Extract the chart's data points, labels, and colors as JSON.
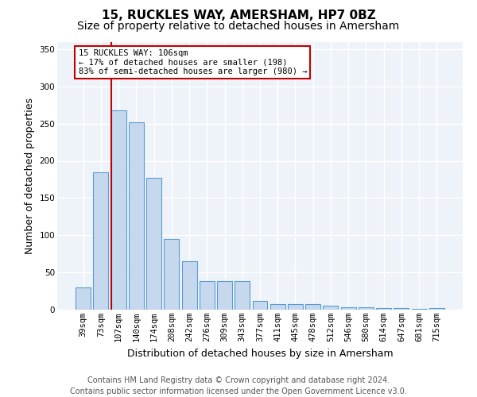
{
  "title": "15, RUCKLES WAY, AMERSHAM, HP7 0BZ",
  "subtitle": "Size of property relative to detached houses in Amersham",
  "xlabel": "Distribution of detached houses by size in Amersham",
  "ylabel": "Number of detached properties",
  "categories": [
    "39sqm",
    "73sqm",
    "107sqm",
    "140sqm",
    "174sqm",
    "208sqm",
    "242sqm",
    "276sqm",
    "309sqm",
    "343sqm",
    "377sqm",
    "411sqm",
    "445sqm",
    "478sqm",
    "512sqm",
    "546sqm",
    "580sqm",
    "614sqm",
    "647sqm",
    "681sqm",
    "715sqm"
  ],
  "values": [
    30,
    185,
    268,
    252,
    177,
    95,
    65,
    38,
    38,
    38,
    12,
    8,
    7,
    7,
    5,
    3,
    3,
    2,
    2,
    1,
    2
  ],
  "bar_color": "#c5d8ed",
  "bar_edge_color": "#5b9bd5",
  "highlight_index": 2,
  "highlight_color": "#c00000",
  "annotation_text": "15 RUCKLES WAY: 106sqm\n← 17% of detached houses are smaller (198)\n83% of semi-detached houses are larger (980) →",
  "annotation_box_color": "white",
  "annotation_box_edge_color": "#c00000",
  "ylim": [
    0,
    360
  ],
  "yticks": [
    0,
    50,
    100,
    150,
    200,
    250,
    300,
    350
  ],
  "footer_line1": "Contains HM Land Registry data © Crown copyright and database right 2024.",
  "footer_line2": "Contains public sector information licensed under the Open Government Licence v3.0.",
  "bg_color": "#eef3f9",
  "grid_color": "#ffffff",
  "title_fontsize": 11,
  "subtitle_fontsize": 10,
  "tick_fontsize": 7.5,
  "ylabel_fontsize": 9,
  "xlabel_fontsize": 9,
  "footer_fontsize": 7,
  "annotation_fontsize": 7.5
}
